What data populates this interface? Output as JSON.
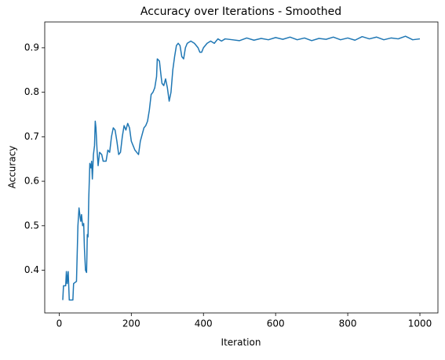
{
  "chart_data": {
    "type": "line",
    "title": "Accuracy over Iterations - Smoothed",
    "x_label": "Iteration",
    "y_label": "Accuracy",
    "x": [
      10,
      12,
      18,
      20,
      22,
      25,
      28,
      38,
      40,
      48,
      52,
      55,
      58,
      60,
      62,
      65,
      68,
      70,
      73,
      76,
      78,
      80,
      82,
      85,
      88,
      90,
      92,
      95,
      98,
      100,
      102,
      105,
      108,
      112,
      118,
      122,
      130,
      135,
      140,
      145,
      150,
      155,
      160,
      165,
      170,
      175,
      180,
      185,
      190,
      195,
      200,
      205,
      210,
      215,
      220,
      225,
      230,
      235,
      240,
      245,
      250,
      255,
      260,
      265,
      270,
      272,
      278,
      282,
      285,
      290,
      295,
      300,
      305,
      310,
      315,
      320,
      325,
      330,
      335,
      340,
      345,
      350,
      355,
      365,
      375,
      385,
      390,
      395,
      400,
      410,
      420,
      430,
      440,
      450,
      460,
      480,
      500,
      520,
      540,
      560,
      580,
      600,
      620,
      640,
      660,
      680,
      700,
      720,
      740,
      760,
      780,
      800,
      820,
      840,
      860,
      880,
      900,
      920,
      940,
      960,
      980,
      1000
    ],
    "series": [
      {
        "name": "Accuracy",
        "color": "#1f77b4",
        "values": [
          0.333,
          0.365,
          0.365,
          0.397,
          0.37,
          0.397,
          0.333,
          0.333,
          0.37,
          0.375,
          0.5,
          0.54,
          0.52,
          0.51,
          0.525,
          0.5,
          0.505,
          0.45,
          0.4,
          0.395,
          0.48,
          0.475,
          0.56,
          0.64,
          0.63,
          0.645,
          0.605,
          0.66,
          0.68,
          0.735,
          0.72,
          0.67,
          0.635,
          0.665,
          0.66,
          0.645,
          0.645,
          0.67,
          0.665,
          0.7,
          0.72,
          0.715,
          0.69,
          0.66,
          0.665,
          0.7,
          0.725,
          0.715,
          0.73,
          0.72,
          0.69,
          0.68,
          0.67,
          0.665,
          0.66,
          0.69,
          0.705,
          0.72,
          0.725,
          0.735,
          0.76,
          0.795,
          0.8,
          0.81,
          0.835,
          0.875,
          0.87,
          0.84,
          0.82,
          0.815,
          0.83,
          0.81,
          0.78,
          0.8,
          0.85,
          0.88,
          0.905,
          0.91,
          0.905,
          0.88,
          0.875,
          0.9,
          0.91,
          0.915,
          0.91,
          0.9,
          0.89,
          0.89,
          0.9,
          0.91,
          0.915,
          0.91,
          0.92,
          0.915,
          0.92,
          0.918,
          0.916,
          0.922,
          0.917,
          0.921,
          0.918,
          0.923,
          0.919,
          0.924,
          0.918,
          0.922,
          0.916,
          0.921,
          0.919,
          0.924,
          0.918,
          0.922,
          0.917,
          0.925,
          0.92,
          0.924,
          0.918,
          0.922,
          0.92,
          0.926,
          0.918,
          0.92
        ]
      }
    ],
    "xlim": [
      -40,
      1050
    ],
    "ylim": [
      0.304,
      0.958
    ],
    "xticks": [
      0,
      200,
      400,
      600,
      800,
      1000
    ],
    "yticks": [
      0.4,
      0.5,
      0.6,
      0.7,
      0.8,
      0.9
    ]
  }
}
